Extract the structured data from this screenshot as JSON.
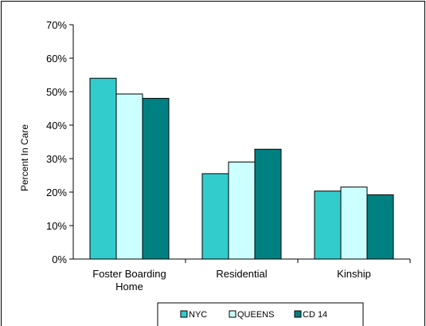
{
  "chart_data": {
    "type": "bar",
    "categories": [
      "Foster Boarding\nHome",
      "Residential",
      "Kinship"
    ],
    "series": [
      {
        "name": "NYC",
        "values": [
          54,
          25.5,
          20.3
        ],
        "color": "#33cccc"
      },
      {
        "name": "QUEENS",
        "values": [
          49.3,
          29,
          21.5
        ],
        "color": "#ccffff"
      },
      {
        "name": "CD 14",
        "values": [
          48,
          32.8,
          19.2
        ],
        "color": "#008080"
      }
    ],
    "title": "",
    "xlabel": "",
    "ylabel": "Percent In Care",
    "ylim": [
      0,
      70
    ],
    "yticks": [
      0,
      10,
      20,
      30,
      40,
      50,
      60,
      70
    ],
    "ytick_labels": [
      "0%",
      "10%",
      "20%",
      "30%",
      "40%",
      "50%",
      "60%",
      "70%"
    ],
    "grid": false,
    "legend": "bottom"
  }
}
